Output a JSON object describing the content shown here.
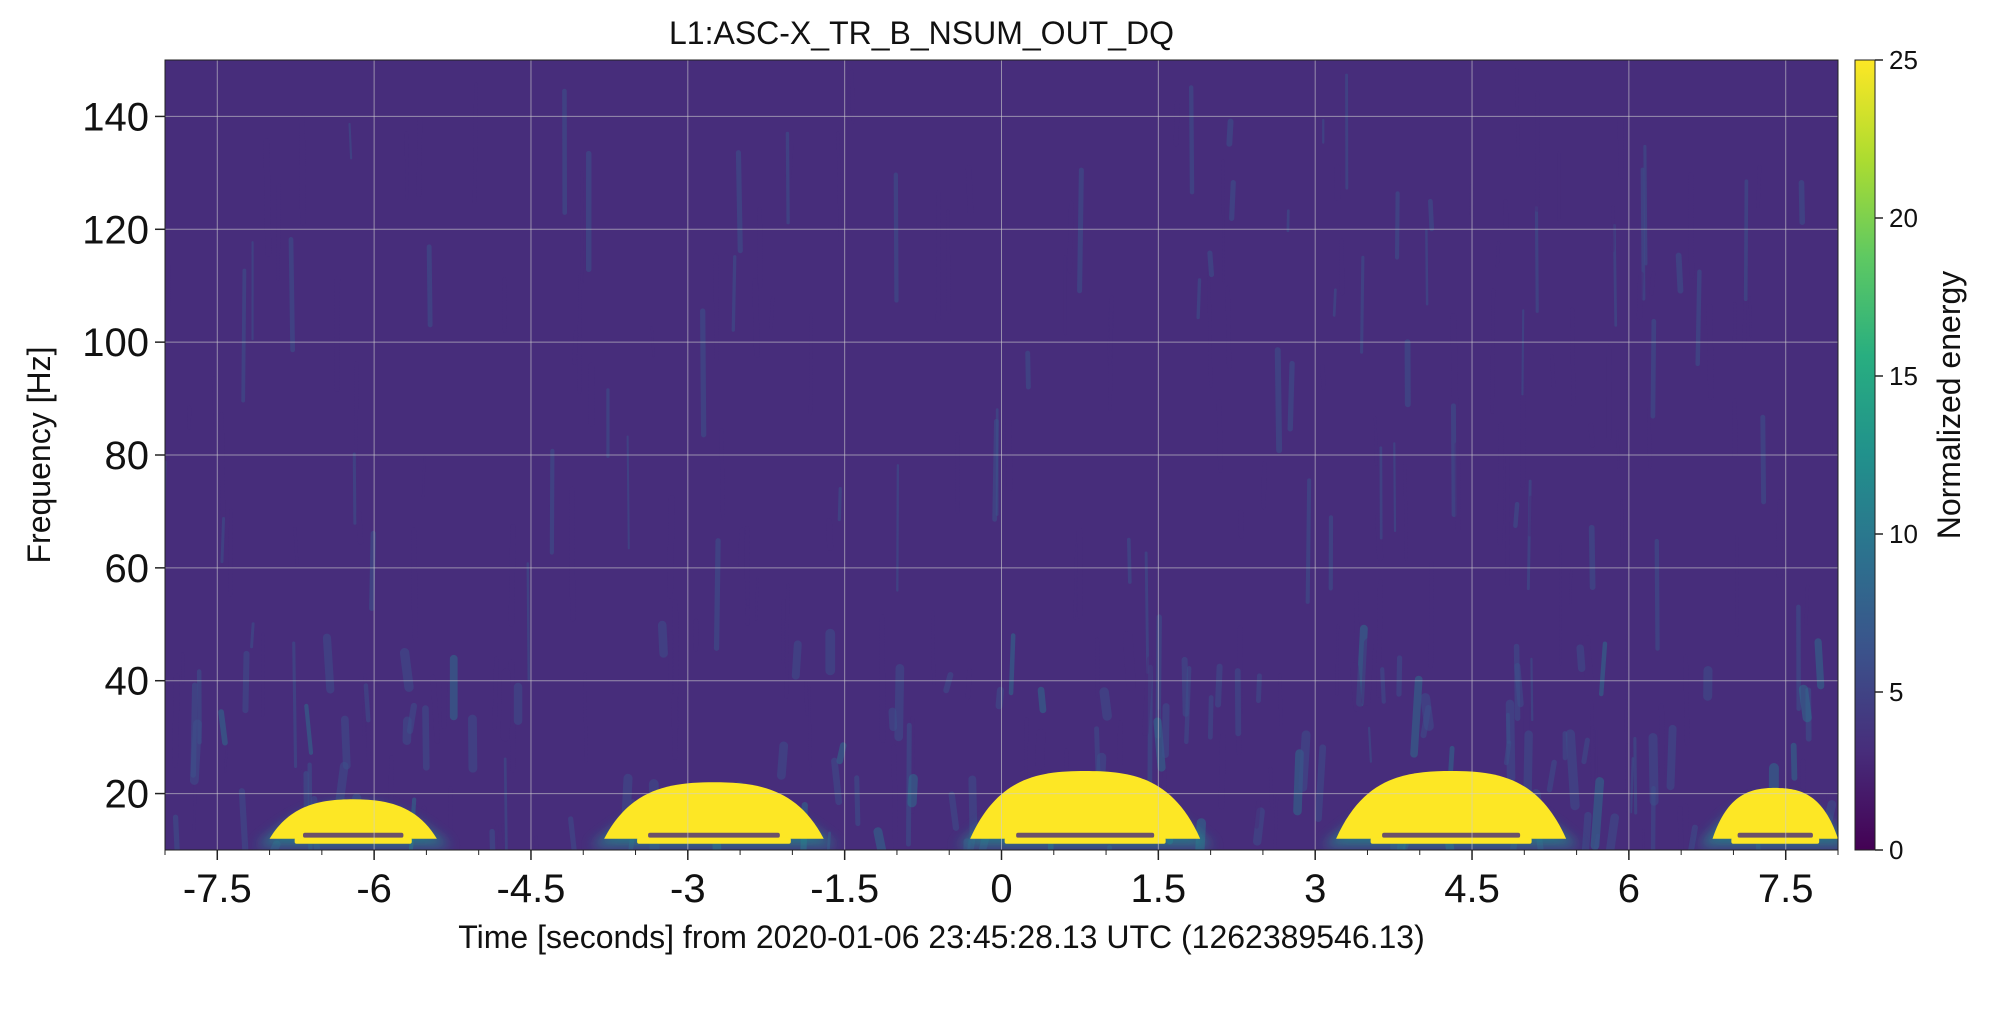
{
  "chart_data": {
    "type": "heatmap",
    "title": "L1:ASC-X_TR_B_NSUM_OUT_DQ",
    "xlabel": "Time [seconds] from 2020-01-06 23:45:28.13 UTC (1262389546.13)",
    "ylabel": "Frequency [Hz]",
    "colorbar_label": "Normalized energy",
    "xlim": [
      -8.0,
      8.0
    ],
    "ylim": [
      10,
      150
    ],
    "clim": [
      0,
      25
    ],
    "x_ticks": [
      -7.5,
      -6,
      -4.5,
      -3,
      -1.5,
      0,
      1.5,
      3,
      4.5,
      6,
      7.5
    ],
    "x_tick_labels": [
      "-7.5",
      "-6",
      "-4.5",
      "-3",
      "-1.5",
      "0",
      "1.5",
      "3",
      "4.5",
      "6",
      "7.5"
    ],
    "y_ticks": [
      20,
      40,
      60,
      80,
      100,
      120,
      140
    ],
    "y_tick_labels": [
      "20",
      "40",
      "60",
      "80",
      "100",
      "120",
      "140"
    ],
    "colorbar_ticks": [
      0,
      5,
      10,
      15,
      20,
      25
    ],
    "colorbar_tick_labels": [
      "0",
      "5",
      "10",
      "15",
      "20",
      "25"
    ],
    "colormap": "viridis",
    "grid": true,
    "background_energy": 2,
    "high_energy_regions": [
      {
        "t_start": -7.0,
        "t_end": -5.4,
        "f_low": 12,
        "f_high": 19,
        "energy": 25
      },
      {
        "t_start": -3.8,
        "t_end": -1.7,
        "f_low": 12,
        "f_high": 22,
        "energy": 25
      },
      {
        "t_start": -0.3,
        "t_end": 1.9,
        "f_low": 12,
        "f_high": 24,
        "energy": 25
      },
      {
        "t_start": 3.2,
        "t_end": 5.4,
        "f_low": 12,
        "f_high": 24,
        "energy": 25
      },
      {
        "t_start": 6.8,
        "t_end": 8.0,
        "f_low": 12,
        "f_high": 21,
        "energy": 25
      }
    ]
  }
}
